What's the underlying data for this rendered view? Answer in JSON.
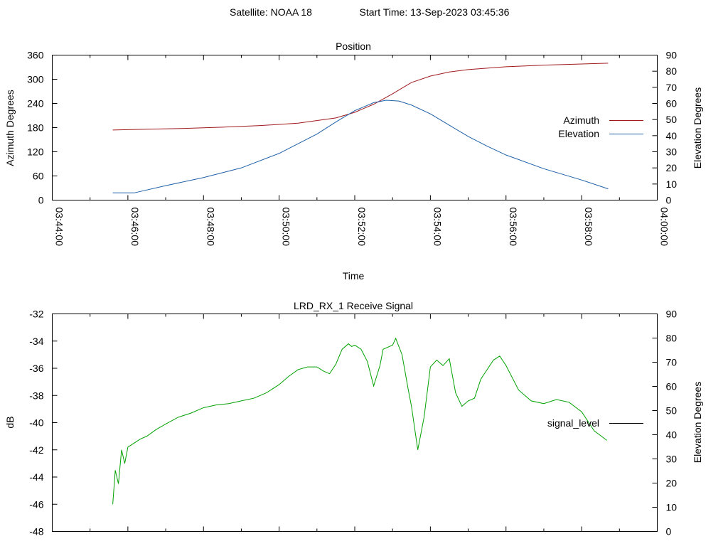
{
  "header": {
    "satellite": "Satellite: NOAA 18",
    "start_time": "Start Time: 13-Sep-2023 03:45:36"
  },
  "chart_data": [
    {
      "type": "line",
      "title": "Position",
      "xlabel": "Time",
      "ylabel": "Azimuth Degrees",
      "y2label": "Elevation Degrees",
      "xlim": [
        "03:44:00",
        "04:00:00"
      ],
      "ylim": [
        0,
        360
      ],
      "y2lim": [
        0,
        90
      ],
      "x_ticks": [
        "03:44:00",
        "03:46:00",
        "03:48:00",
        "03:50:00",
        "03:52:00",
        "03:54:00",
        "03:56:00",
        "03:58:00",
        "04:00:00"
      ],
      "y_ticks": [
        "0",
        "60",
        "120",
        "180",
        "240",
        "300",
        "360"
      ],
      "y2_ticks": [
        "0",
        "10",
        "20",
        "30",
        "40",
        "50",
        "60",
        "70",
        "80",
        "90"
      ],
      "legend_position": "right",
      "grid": false,
      "series": [
        {
          "name": "Azimuth",
          "axis": "left",
          "color": "#a0191e",
          "x": [
            "03:45:36",
            "03:46:30",
            "03:47:30",
            "03:48:30",
            "03:49:30",
            "03:50:30",
            "03:51:30",
            "03:52:00",
            "03:52:30",
            "03:53:00",
            "03:53:30",
            "03:54:00",
            "03:54:30",
            "03:55:00",
            "03:56:00",
            "03:57:00",
            "03:58:00",
            "03:58:42"
          ],
          "values": [
            174,
            176,
            178,
            181,
            185,
            191,
            204,
            218,
            238,
            264,
            292,
            308,
            318,
            324,
            331,
            335,
            338,
            340
          ]
        },
        {
          "name": "Elevation",
          "axis": "right",
          "color": "#1f60a8",
          "x": [
            "03:45:36",
            "03:46:10",
            "03:47:00",
            "03:48:00",
            "03:49:00",
            "03:50:00",
            "03:51:00",
            "03:51:30",
            "03:52:00",
            "03:52:30",
            "03:52:50",
            "03:53:10",
            "03:53:30",
            "03:54:00",
            "03:54:30",
            "03:55:00",
            "03:55:30",
            "03:56:00",
            "03:57:00",
            "03:58:00",
            "03:58:42"
          ],
          "values": [
            4.5,
            4.5,
            9,
            14,
            20,
            29,
            41,
            48.5,
            55.5,
            60.5,
            62,
            61.5,
            59,
            53.5,
            46.5,
            39.5,
            33.5,
            28,
            19.5,
            12.5,
            7
          ]
        }
      ]
    },
    {
      "type": "line",
      "title": "LRD_RX_1 Receive Signal",
      "ylabel": "dB",
      "y2label": "Elevation Degrees",
      "xlim": [
        "03:44:00",
        "04:00:00"
      ],
      "ylim": [
        -48,
        -32
      ],
      "y2lim": [
        0,
        90
      ],
      "y_ticks": [
        "-48",
        "-46",
        "-44",
        "-42",
        "-40",
        "-38",
        "-36",
        "-34",
        "-32"
      ],
      "y2_ticks": [
        "0",
        "10",
        "20",
        "30",
        "40",
        "50",
        "60",
        "70",
        "80",
        "90"
      ],
      "legend_position": "right",
      "grid": false,
      "series": [
        {
          "name": "signal_level",
          "color": "#00a000",
          "x": [
            "03:45:36",
            "03:45:40",
            "03:45:45",
            "03:45:50",
            "03:45:55",
            "03:46:00",
            "03:46:10",
            "03:46:20",
            "03:46:30",
            "03:46:45",
            "03:47:00",
            "03:47:20",
            "03:47:40",
            "03:48:00",
            "03:48:20",
            "03:48:40",
            "03:49:00",
            "03:49:20",
            "03:49:40",
            "03:50:00",
            "03:50:15",
            "03:50:30",
            "03:50:45",
            "03:51:00",
            "03:51:10",
            "03:51:20",
            "03:51:30",
            "03:51:40",
            "03:51:50",
            "03:51:55",
            "03:52:00",
            "03:52:10",
            "03:52:20",
            "03:52:30",
            "03:52:40",
            "03:52:45",
            "03:52:50",
            "03:53:00",
            "03:53:05",
            "03:53:10",
            "03:53:15",
            "03:53:20",
            "03:53:25",
            "03:53:30",
            "03:53:40",
            "03:53:50",
            "03:54:00",
            "03:54:10",
            "03:54:20",
            "03:54:30",
            "03:54:40",
            "03:54:50",
            "03:55:00",
            "03:55:10",
            "03:55:20",
            "03:55:30",
            "03:55:40",
            "03:55:50",
            "03:56:00",
            "03:56:20",
            "03:56:40",
            "03:57:00",
            "03:57:20",
            "03:57:40",
            "03:58:00",
            "03:58:20",
            "03:58:40"
          ],
          "values": [
            -46.0,
            -43.5,
            -44.5,
            -42.0,
            -43.0,
            -41.8,
            -41.5,
            -41.2,
            -41.0,
            -40.5,
            -40.1,
            -39.6,
            -39.3,
            -38.9,
            -38.7,
            -38.6,
            -38.4,
            -38.2,
            -37.8,
            -37.2,
            -36.6,
            -36.1,
            -35.9,
            -35.9,
            -36.2,
            -36.4,
            -35.7,
            -34.6,
            -34.2,
            -34.4,
            -34.3,
            -34.6,
            -35.5,
            -37.3,
            -35.8,
            -34.6,
            -34.5,
            -34.3,
            -33.8,
            -34.4,
            -35.0,
            -36.3,
            -37.6,
            -38.8,
            -42.0,
            -39.6,
            -35.9,
            -35.4,
            -35.8,
            -35.3,
            -37.8,
            -38.8,
            -38.4,
            -38.2,
            -36.8,
            -36.1,
            -35.4,
            -35.1,
            -35.8,
            -37.6,
            -38.4,
            -38.6,
            -38.3,
            -38.5,
            -39.2,
            -40.6,
            -41.3
          ]
        }
      ]
    }
  ]
}
